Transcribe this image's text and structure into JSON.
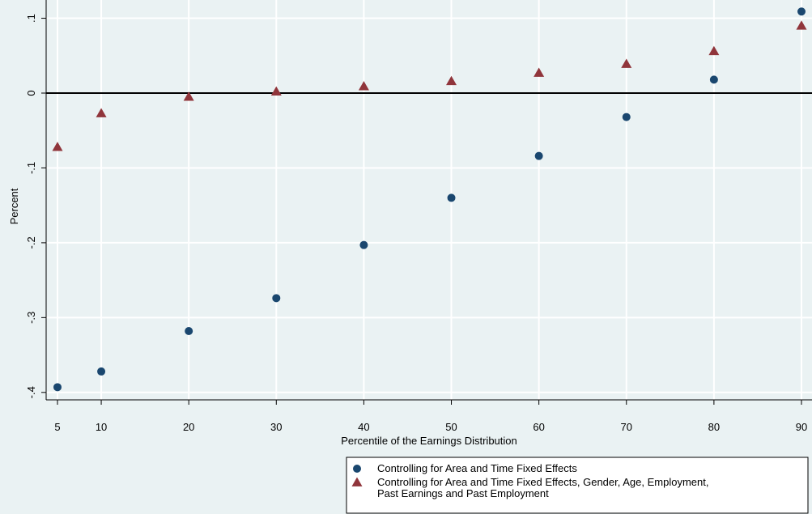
{
  "chart_data": {
    "type": "scatter",
    "title": "",
    "xlabel": "Percentile of the Earnings Distribution",
    "ylabel": "Percent",
    "xticks": [
      5,
      10,
      20,
      30,
      40,
      50,
      60,
      70,
      80,
      90
    ],
    "yticks": [
      {
        "value": 0.1,
        "label": ".1"
      },
      {
        "value": 0.0,
        "label": "0"
      },
      {
        "value": -0.1,
        "label": "-.1"
      },
      {
        "value": -0.2,
        "label": "-.2"
      },
      {
        "value": -0.3,
        "label": "-.3"
      },
      {
        "value": -0.4,
        "label": "-.4"
      }
    ],
    "xlim": [
      5,
      90
    ],
    "ylim": [
      -0.4,
      0.1
    ],
    "grid": true,
    "reference_line_y": 0,
    "legend_position": "bottom-right",
    "series": [
      {
        "name": "Controlling for Area and Time Fixed Effects",
        "marker": "circle",
        "color": "#1a476f",
        "x": [
          5,
          10,
          20,
          30,
          40,
          50,
          60,
          70,
          80,
          90
        ],
        "y": [
          -0.393,
          -0.372,
          -0.318,
          -0.274,
          -0.203,
          -0.14,
          -0.084,
          -0.032,
          0.018,
          0.109
        ]
      },
      {
        "name": "Controlling for Area and Time Fixed Effects, Gender, Age, Employment, Past Earnings and Past Employment",
        "marker": "triangle",
        "color": "#90353b",
        "x": [
          5,
          10,
          20,
          30,
          40,
          50,
          60,
          70,
          80,
          90
        ],
        "y": [
          -0.072,
          -0.027,
          -0.005,
          0.002,
          0.009,
          0.016,
          0.027,
          0.039,
          0.056,
          0.09
        ]
      }
    ],
    "legend_lines": [
      [
        "Controlling for Area and Time Fixed Effects"
      ],
      [
        "Controlling for Area and Time Fixed Effects, Gender, Age, Employment,",
        "Past Earnings and Past Employment"
      ]
    ]
  }
}
